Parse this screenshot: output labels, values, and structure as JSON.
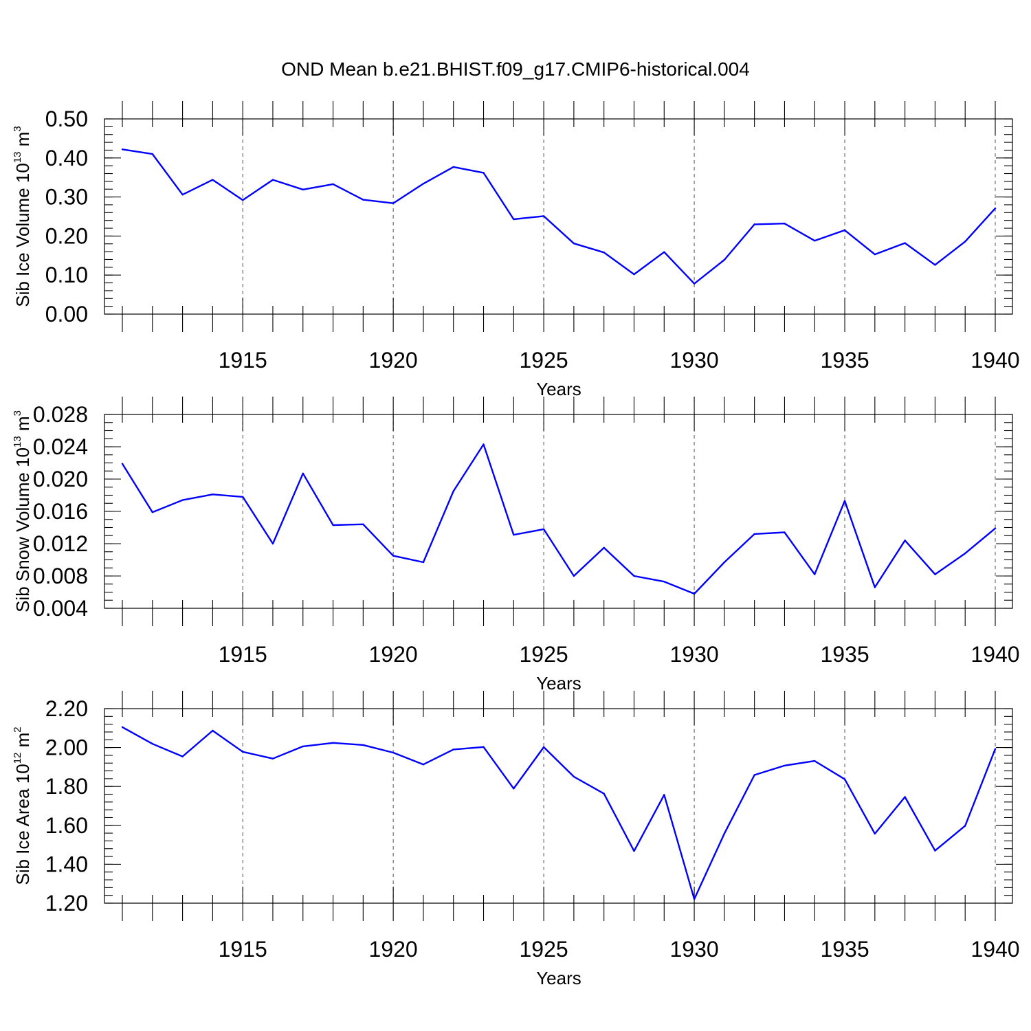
{
  "figure": {
    "title": "OND Mean b.e21.BHIST.f09_g17.CMIP6-historical.004"
  },
  "colors": {
    "series": "#0000ff",
    "axes": "#000000",
    "grid": "#555555"
  },
  "chart_data": [
    {
      "type": "line",
      "ylabel": {
        "prefix": "Sib Ice Volume 10",
        "exp": "13",
        "unit": " m",
        "unit_exp": "3"
      },
      "xlabel": "Years",
      "xlim": [
        1911,
        1940
      ],
      "ylim": [
        0.0,
        0.5
      ],
      "yticks": [
        0.0,
        0.1,
        0.2,
        0.3,
        0.4,
        0.5
      ],
      "ytick_labels": [
        "0.00",
        "0.10",
        "0.20",
        "0.30",
        "0.40",
        "0.50"
      ],
      "y_minor_step": 0.02,
      "xticks": [
        1915,
        1920,
        1925,
        1930,
        1935,
        1940
      ],
      "xtick_labels": [
        "1915",
        "1920",
        "1925",
        "1930",
        "1935",
        "1940"
      ],
      "grid": "x-dashed",
      "x": [
        1911,
        1912,
        1913,
        1914,
        1915,
        1916,
        1917,
        1918,
        1919,
        1920,
        1921,
        1922,
        1923,
        1924,
        1925,
        1926,
        1927,
        1928,
        1929,
        1930,
        1931,
        1932,
        1933,
        1934,
        1935,
        1936,
        1937,
        1938,
        1939,
        1940
      ],
      "values": [
        0.422,
        0.41,
        0.306,
        0.344,
        0.292,
        0.344,
        0.319,
        0.333,
        0.293,
        0.284,
        0.334,
        0.377,
        0.362,
        0.243,
        0.251,
        0.181,
        0.158,
        0.102,
        0.159,
        0.078,
        0.139,
        0.23,
        0.232,
        0.188,
        0.215,
        0.153,
        0.182,
        0.126,
        0.186,
        0.271
      ]
    },
    {
      "type": "line",
      "ylabel": {
        "prefix": "Sib Snow Volume 10",
        "exp": "13",
        "unit": " m",
        "unit_exp": "3"
      },
      "xlabel": "Years",
      "xlim": [
        1911,
        1940
      ],
      "ylim": [
        0.004,
        0.028
      ],
      "yticks": [
        0.004,
        0.008,
        0.012,
        0.016,
        0.02,
        0.024,
        0.028
      ],
      "ytick_labels": [
        "0.004",
        "0.008",
        "0.012",
        "0.016",
        "0.020",
        "0.024",
        "0.028"
      ],
      "y_minor_step": 0.001,
      "xticks": [
        1915,
        1920,
        1925,
        1930,
        1935,
        1940
      ],
      "xtick_labels": [
        "1915",
        "1920",
        "1925",
        "1930",
        "1935",
        "1940"
      ],
      "grid": "x-dashed",
      "x": [
        1911,
        1912,
        1913,
        1914,
        1915,
        1916,
        1917,
        1918,
        1919,
        1920,
        1921,
        1922,
        1923,
        1924,
        1925,
        1926,
        1927,
        1928,
        1929,
        1930,
        1931,
        1932,
        1933,
        1934,
        1935,
        1936,
        1937,
        1938,
        1939,
        1940
      ],
      "values": [
        0.0219,
        0.0159,
        0.0174,
        0.0181,
        0.0178,
        0.012,
        0.0207,
        0.0143,
        0.0144,
        0.0105,
        0.0097,
        0.0185,
        0.0243,
        0.0131,
        0.0138,
        0.008,
        0.0115,
        0.008,
        0.0073,
        0.0058,
        0.0097,
        0.0132,
        0.0134,
        0.0082,
        0.0173,
        0.0066,
        0.0124,
        0.0082,
        0.0108,
        0.0139
      ]
    },
    {
      "type": "line",
      "ylabel": {
        "prefix": "Sib Ice Area 10",
        "exp": "12",
        "unit": " m",
        "unit_exp": "2"
      },
      "xlabel": "Years",
      "xlim": [
        1911,
        1940
      ],
      "ylim": [
        1.2,
        2.2
      ],
      "yticks": [
        1.2,
        1.4,
        1.6,
        1.8,
        2.0,
        2.2
      ],
      "ytick_labels": [
        "1.20",
        "1.40",
        "1.60",
        "1.80",
        "2.00",
        "2.20"
      ],
      "y_minor_step": 0.04,
      "xticks": [
        1915,
        1920,
        1925,
        1930,
        1935,
        1940
      ],
      "xtick_labels": [
        "1915",
        "1920",
        "1925",
        "1930",
        "1935",
        "1940"
      ],
      "grid": "x-dashed",
      "x": [
        1911,
        1912,
        1913,
        1914,
        1915,
        1916,
        1917,
        1918,
        1919,
        1920,
        1921,
        1922,
        1923,
        1924,
        1925,
        1926,
        1927,
        1928,
        1929,
        1930,
        1931,
        1932,
        1933,
        1934,
        1935,
        1936,
        1937,
        1938,
        1939,
        1940
      ],
      "values": [
        2.105,
        2.019,
        1.954,
        2.087,
        1.978,
        1.943,
        2.006,
        2.024,
        2.013,
        1.974,
        1.913,
        1.99,
        2.003,
        1.789,
        2.002,
        1.85,
        1.763,
        1.468,
        1.757,
        1.221,
        1.558,
        1.859,
        1.907,
        1.931,
        1.837,
        1.557,
        1.746,
        1.47,
        1.598,
        1.993
      ]
    }
  ]
}
